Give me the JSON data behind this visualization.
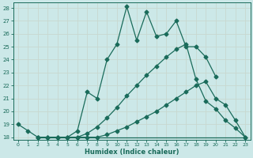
{
  "xlabel": "Humidex (Indice chaleur)",
  "bg_color": "#cce8e8",
  "grid_color": "#b8d8d8",
  "line_color": "#1a6b5a",
  "xlim": [
    -0.5,
    23.5
  ],
  "ylim": [
    17.8,
    28.4
  ],
  "yticks": [
    18,
    19,
    20,
    21,
    22,
    23,
    24,
    25,
    26,
    27,
    28
  ],
  "xticks": [
    0,
    1,
    2,
    3,
    4,
    5,
    6,
    7,
    8,
    9,
    10,
    11,
    12,
    13,
    14,
    15,
    16,
    17,
    18,
    19,
    20,
    21,
    22,
    23
  ],
  "series": [
    {
      "x": [
        0,
        1,
        2,
        3,
        4,
        5,
        6,
        7,
        8,
        9,
        10,
        11,
        12,
        13,
        14,
        15,
        16,
        17,
        18,
        19,
        20
      ],
      "y": [
        19.0,
        18.5,
        18.0,
        18.0,
        18.0,
        18.0,
        18.5,
        21.5,
        21.0,
        24.0,
        25.2,
        28.1,
        25.5,
        27.7,
        25.8,
        26.0,
        27.0,
        25.0,
        25.0,
        24.2,
        22.7
      ],
      "marker": "D",
      "markersize": 2.5,
      "lw": 0.9
    },
    {
      "x": [
        2,
        3,
        4,
        5,
        6,
        7,
        8,
        9,
        10,
        11,
        12,
        13,
        14,
        15,
        16,
        17,
        18,
        19,
        20,
        21,
        22,
        23
      ],
      "y": [
        18.0,
        18.0,
        18.0,
        18.0,
        18.0,
        18.3,
        18.8,
        19.5,
        20.3,
        21.2,
        22.0,
        22.8,
        23.5,
        24.2,
        24.8,
        25.2,
        22.5,
        20.8,
        20.2,
        19.3,
        18.7,
        18.0
      ],
      "marker": "D",
      "markersize": 2.5,
      "lw": 0.9
    },
    {
      "x": [
        2,
        3,
        4,
        5,
        6,
        7,
        8,
        9,
        10,
        11,
        12,
        13,
        14,
        15,
        16,
        17,
        18,
        19,
        20,
        21,
        22,
        23
      ],
      "y": [
        18.0,
        18.0,
        18.0,
        18.0,
        18.0,
        18.0,
        18.0,
        18.2,
        18.5,
        18.8,
        19.2,
        19.6,
        20.0,
        20.5,
        21.0,
        21.5,
        22.0,
        22.3,
        21.0,
        20.5,
        19.3,
        18.0
      ],
      "marker": "D",
      "markersize": 2.5,
      "lw": 0.9
    },
    {
      "x": [
        2,
        3,
        4,
        5,
        6,
        7,
        8,
        9,
        10,
        11,
        12,
        13,
        14,
        15,
        16,
        17,
        18,
        19,
        20,
        21,
        22,
        23
      ],
      "y": [
        18.0,
        18.0,
        18.0,
        18.0,
        18.0,
        18.0,
        18.0,
        18.0,
        18.0,
        18.0,
        18.0,
        18.0,
        18.0,
        18.0,
        18.0,
        18.0,
        18.0,
        18.0,
        18.0,
        18.0,
        18.0,
        18.0
      ],
      "marker": null,
      "markersize": 0,
      "lw": 0.9
    }
  ]
}
